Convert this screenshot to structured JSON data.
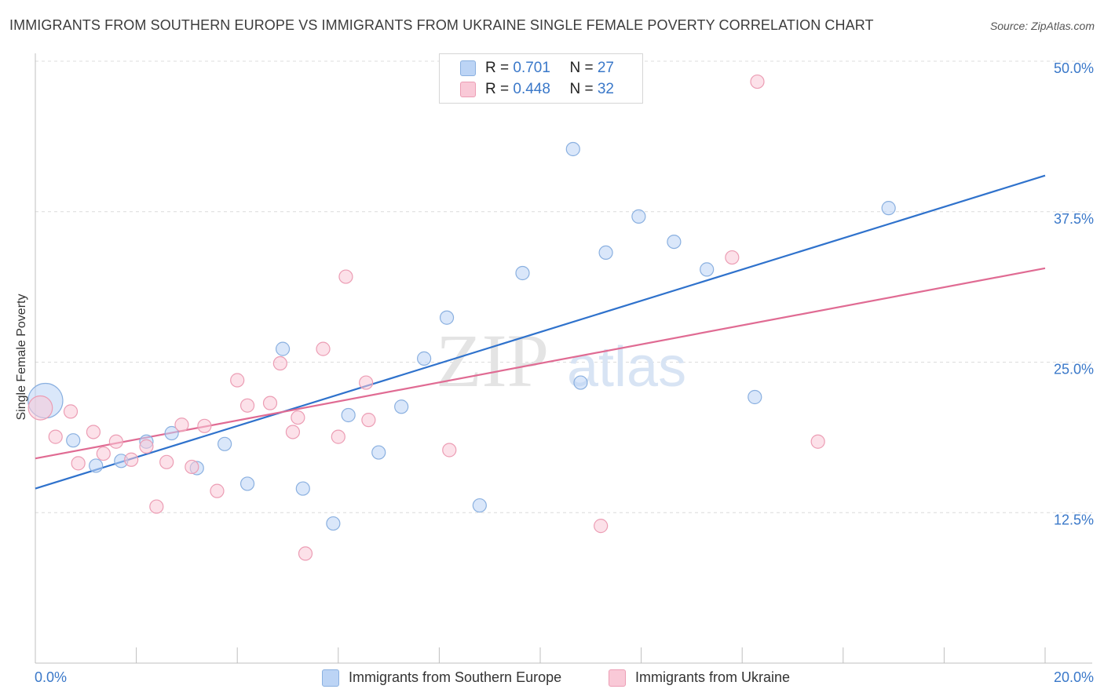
{
  "title": "IMMIGRANTS FROM SOUTHERN EUROPE VS IMMIGRANTS FROM UKRAINE SINGLE FEMALE POVERTY CORRELATION CHART",
  "source": "Source: ZipAtlas.com",
  "watermark": {
    "zip": "ZIP",
    "atlas": "atlas"
  },
  "legend": {
    "rows": [
      {
        "r_label": "R = ",
        "r_value": "0.701",
        "n_label": "N = ",
        "n_value": "27"
      },
      {
        "r_label": "R = ",
        "r_value": "0.448",
        "n_label": "N = ",
        "n_value": "32"
      }
    ]
  },
  "colors": {
    "blue_fill": "#bcd4f5",
    "blue_stroke": "#8ab0e0",
    "blue_line": "#2f72cc",
    "pink_fill": "#f9c9d7",
    "pink_stroke": "#ec9db4",
    "pink_line": "#e06b93",
    "tick_label": "#3a78c9",
    "grid": "#dcdcdc"
  },
  "chart_data": {
    "type": "scatter",
    "xlabel": "",
    "ylabel": "Single Female Poverty",
    "xlim": [
      0,
      20
    ],
    "ylim": [
      0,
      50
    ],
    "x_tick_labels": [
      {
        "value": 0,
        "label": "0.0%"
      },
      {
        "value": 20,
        "label": "20.0%"
      }
    ],
    "y_tick_labels": [
      {
        "value": 12.5,
        "label": "12.5%"
      },
      {
        "value": 25,
        "label": "25.0%"
      },
      {
        "value": 37.5,
        "label": "37.5%"
      },
      {
        "value": 50,
        "label": "50.0%"
      }
    ],
    "grid": true,
    "legend_placement": "top-center",
    "series": [
      {
        "name": "Immigrants from Southern Europe",
        "color": "blue",
        "points": [
          [
            0.2,
            21.8,
            2.6
          ],
          [
            0.75,
            18.5,
            1
          ],
          [
            1.2,
            16.4,
            1
          ],
          [
            1.7,
            16.8,
            1
          ],
          [
            2.2,
            18.4,
            1
          ],
          [
            2.7,
            19.1,
            1
          ],
          [
            3.2,
            16.2,
            1
          ],
          [
            3.75,
            18.2,
            1
          ],
          [
            4.2,
            14.9,
            1
          ],
          [
            4.9,
            26.1,
            1
          ],
          [
            5.3,
            14.5,
            1
          ],
          [
            5.9,
            11.6,
            1
          ],
          [
            6.2,
            20.6,
            1
          ],
          [
            6.8,
            17.5,
            1
          ],
          [
            7.25,
            21.3,
            1
          ],
          [
            7.7,
            25.3,
            1
          ],
          [
            8.15,
            28.7,
            1
          ],
          [
            8.8,
            13.1,
            1
          ],
          [
            9.65,
            32.4,
            1
          ],
          [
            10.65,
            42.7,
            1
          ],
          [
            10.8,
            23.3,
            1
          ],
          [
            11.3,
            34.1,
            1
          ],
          [
            11.95,
            37.1,
            1
          ],
          [
            12.65,
            35.0,
            1
          ],
          [
            13.3,
            32.7,
            1
          ],
          [
            14.25,
            22.1,
            1
          ],
          [
            16.9,
            37.8,
            1
          ]
        ],
        "trendline": {
          "x": [
            0,
            20
          ],
          "y": [
            14.5,
            40.5
          ]
        }
      },
      {
        "name": "Immigrants from Ukraine",
        "color": "pink",
        "points": [
          [
            0.1,
            21.2,
            1.8
          ],
          [
            0.4,
            18.8,
            1
          ],
          [
            0.7,
            20.9,
            1
          ],
          [
            0.85,
            16.6,
            1
          ],
          [
            1.15,
            19.2,
            1
          ],
          [
            1.35,
            17.4,
            1
          ],
          [
            1.6,
            18.4,
            1
          ],
          [
            1.9,
            16.9,
            1
          ],
          [
            2.2,
            18.0,
            1
          ],
          [
            2.4,
            13.0,
            1
          ],
          [
            2.6,
            16.7,
            1
          ],
          [
            2.9,
            19.8,
            1
          ],
          [
            3.1,
            16.3,
            1
          ],
          [
            3.35,
            19.7,
            1
          ],
          [
            3.6,
            14.3,
            1
          ],
          [
            4.0,
            23.5,
            1
          ],
          [
            4.2,
            21.4,
            1
          ],
          [
            4.65,
            21.6,
            1
          ],
          [
            4.85,
            24.9,
            1
          ],
          [
            5.1,
            19.2,
            1
          ],
          [
            5.2,
            20.4,
            1
          ],
          [
            5.35,
            9.1,
            1
          ],
          [
            5.7,
            26.1,
            1
          ],
          [
            6.0,
            18.8,
            1
          ],
          [
            6.15,
            32.1,
            1
          ],
          [
            6.55,
            23.3,
            1
          ],
          [
            6.6,
            20.2,
            1
          ],
          [
            8.2,
            17.7,
            1
          ],
          [
            11.2,
            11.4,
            1
          ],
          [
            13.8,
            33.7,
            1
          ],
          [
            14.3,
            48.3,
            1
          ],
          [
            15.5,
            18.4,
            1
          ]
        ],
        "trendline": {
          "x": [
            0,
            20
          ],
          "y": [
            17.0,
            32.8
          ]
        }
      }
    ]
  }
}
